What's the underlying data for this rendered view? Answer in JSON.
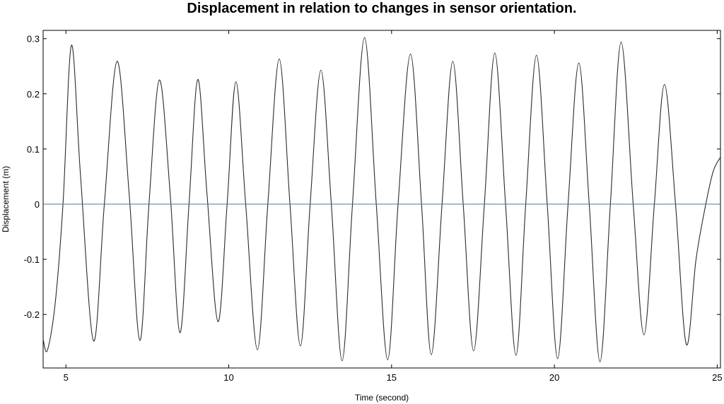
{
  "chart_data": {
    "type": "line",
    "title": "Displacement in relation to changes in sensor orientation.",
    "xlabel": "Time (second)",
    "ylabel": "Displacement (m)",
    "xlim": [
      4.3,
      25.1
    ],
    "ylim": [
      -0.297,
      0.315
    ],
    "x_ticks": [
      5,
      10,
      15,
      20,
      25
    ],
    "x_tick_labels": [
      "5",
      "10",
      "15",
      "20",
      "25"
    ],
    "y_ticks": [
      0.3,
      0.2,
      0.1,
      0,
      -0.1,
      -0.2
    ],
    "y_tick_labels": [
      "0.3",
      "0.2",
      "0.1",
      "0",
      "-0.1",
      "-0.2"
    ],
    "grid": false,
    "legend": "none",
    "series": [
      {
        "color": "#2b2b2b",
        "x": [
          4.3,
          4.43,
          4.67,
          4.91,
          5.17,
          5.45,
          5.85,
          6.18,
          6.57,
          6.94,
          7.27,
          7.55,
          7.87,
          8.2,
          8.5,
          8.78,
          9.05,
          9.33,
          9.67,
          9.95,
          10.22,
          10.52,
          10.88,
          11.2,
          11.55,
          11.88,
          12.2,
          12.5,
          12.83,
          13.15,
          13.48,
          13.8,
          14.17,
          14.53,
          14.88,
          15.2,
          15.58,
          15.92,
          16.22,
          16.55,
          16.88,
          17.2,
          17.52,
          17.85,
          18.17,
          18.5,
          18.82,
          19.12,
          19.45,
          19.78,
          20.1,
          20.42,
          20.75,
          21.07,
          21.4,
          21.72,
          22.05,
          22.42,
          22.75,
          23.07,
          23.38,
          23.72,
          24.05,
          24.35,
          24.65,
          24.88,
          25.1
        ],
        "y": [
          -0.245,
          -0.265,
          -0.18,
          0.0,
          0.288,
          0.05,
          -0.248,
          0.0,
          0.259,
          0.02,
          -0.247,
          0.0,
          0.225,
          0.02,
          -0.233,
          0.0,
          0.226,
          0.02,
          -0.213,
          0.0,
          0.222,
          0.0,
          -0.264,
          0.0,
          0.263,
          0.0,
          -0.257,
          0.0,
          0.243,
          0.0,
          -0.284,
          0.0,
          0.302,
          0.0,
          -0.282,
          0.0,
          0.272,
          0.0,
          -0.273,
          0.0,
          0.259,
          0.0,
          -0.266,
          0.0,
          0.274,
          0.0,
          -0.274,
          0.0,
          0.27,
          0.0,
          -0.28,
          0.0,
          0.256,
          0.0,
          -0.286,
          0.0,
          0.294,
          0.0,
          -0.237,
          0.0,
          0.217,
          0.0,
          -0.254,
          -0.1,
          0.0,
          0.06,
          0.085
        ]
      },
      {
        "color": "#3d7fa3",
        "x": [
          4.3,
          25.1
        ],
        "y": [
          0,
          0
        ]
      }
    ]
  }
}
